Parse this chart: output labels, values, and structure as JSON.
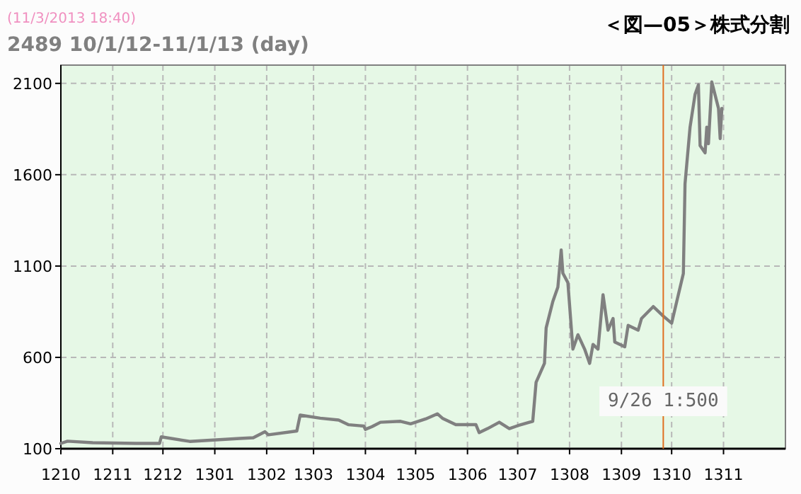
{
  "chart_data": {
    "type": "line",
    "title": "2489 10/1/12-11/1/13 (day)",
    "annotations": [
      "(11/3/2013 18:40)",
      "＜図—05＞株式分割"
    ],
    "x": [
      "2012-10-01",
      "2012-10-05",
      "2012-10-20",
      "2012-11-15",
      "2012-11-29",
      "2012-11-30",
      "2012-12-17",
      "2013-01-16",
      "2013-01-24",
      "2013-01-31",
      "2013-02-02",
      "2013-02-19",
      "2013-02-21",
      "2013-03-05",
      "2013-03-16",
      "2013-03-22",
      "2013-03-31",
      "2013-04-01",
      "2013-04-05",
      "2013-04-10",
      "2013-04-22",
      "2013-04-28",
      "2013-05-07",
      "2013-05-14",
      "2013-05-17",
      "2013-05-25",
      "2013-06-06",
      "2013-06-08",
      "2013-06-13",
      "2013-06-20",
      "2013-06-26",
      "2013-07-01",
      "2013-07-08",
      "2013-07-10",
      "2013-07-12",
      "2013-07-17",
      "2013-07-18",
      "2013-07-22",
      "2013-07-25",
      "2013-07-27",
      "2013-07-28",
      "2013-07-31",
      "2013-08-03",
      "2013-08-06",
      "2013-08-10",
      "2013-08-13",
      "2013-08-15",
      "2013-08-18",
      "2013-08-21",
      "2013-08-24",
      "2013-08-27",
      "2013-08-28",
      "2013-09-03",
      "2013-09-05",
      "2013-09-11",
      "2013-09-13",
      "2013-09-20",
      "2013-09-26",
      "2013-10-01",
      "2013-10-04",
      "2013-10-08",
      "2013-10-09",
      "2013-10-12",
      "2013-10-15",
      "2013-10-17",
      "2013-10-18",
      "2013-10-21",
      "2013-10-22",
      "2013-10-23",
      "2013-10-25",
      "2013-10-29",
      "2013-10-30",
      "2013-10-31"
    ],
    "series": [
      {
        "color": "#808080",
        "values": [
          129,
          141,
          133,
          129,
          129,
          165,
          140,
          156,
          160,
          193,
          176,
          197,
          284,
          267,
          257,
          231,
          224,
          206,
          221,
          245,
          250,
          236,
          263,
          291,
          267,
          232,
          232,
          188,
          210,
          245,
          210,
          226,
          245,
          250,
          464,
          567,
          761,
          906,
          984,
          1188,
          1061,
          1009,
          645,
          724,
          645,
          567,
          671,
          645,
          943,
          749,
          813,
          684,
          658,
          775,
          749,
          813,
          878,
          826,
          787,
          904,
          1059,
          1550,
          1860,
          2040,
          2092,
          1759,
          1720,
          1860,
          1770,
          2108,
          1963,
          1798,
          1963
        ]
      }
    ],
    "xlim": [
      "2012-10-01",
      "2013-12-08"
    ],
    "xticks": [
      {
        "value": "2012-10-01",
        "label": "1210"
      },
      {
        "value": "2012-11-01",
        "label": "1211"
      },
      {
        "value": "2012-12-01",
        "label": "1212"
      },
      {
        "value": "2013-01-01",
        "label": "1301"
      },
      {
        "value": "2013-02-01",
        "label": "1302"
      },
      {
        "value": "2013-03-01",
        "label": "1303"
      },
      {
        "value": "2013-04-01",
        "label": "1304"
      },
      {
        "value": "2013-05-01",
        "label": "1305"
      },
      {
        "value": "2013-06-01",
        "label": "1306"
      },
      {
        "value": "2013-07-01",
        "label": "1307"
      },
      {
        "value": "2013-08-01",
        "label": "1308"
      },
      {
        "value": "2013-09-01",
        "label": "1309"
      },
      {
        "value": "2013-10-01",
        "label": "1310"
      },
      {
        "value": "2013-11-01",
        "label": "1311"
      }
    ],
    "ylim": [
      100,
      2200
    ],
    "yticks": [
      100,
      600,
      1100,
      1600,
      2100
    ],
    "grid": true,
    "ref_lines": [
      {
        "axis": "x",
        "value": "2013-09-26",
        "label": "9/26 1:500",
        "color": "#e07020"
      }
    ]
  }
}
